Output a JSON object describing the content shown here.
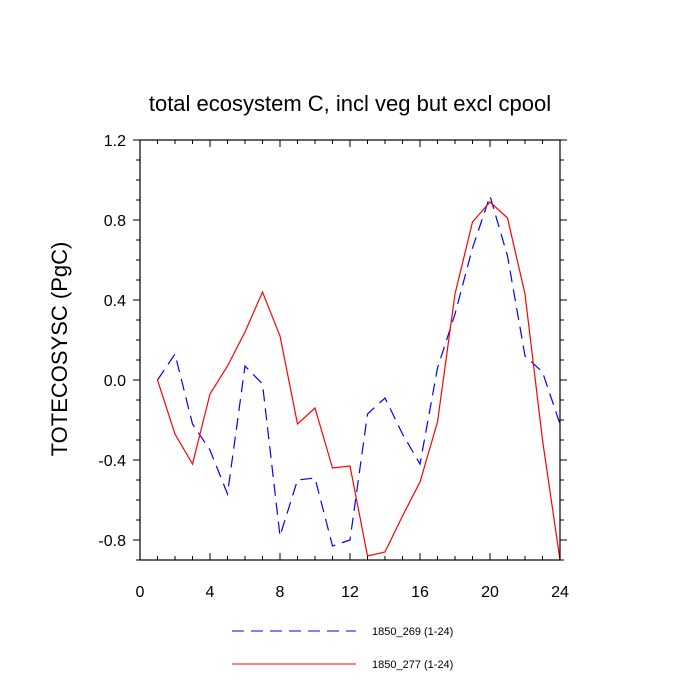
{
  "chart_data": {
    "type": "line",
    "title": "total ecosystem C, incl veg but excl cpool",
    "ylabel": "TOTECOSYSC  (PgC)",
    "xlabel": "",
    "xlim": [
      0,
      24
    ],
    "ylim": [
      -0.9,
      1.2
    ],
    "x_ticks": [
      0,
      4,
      8,
      12,
      16,
      20,
      24
    ],
    "x_tick_labels": [
      "0",
      "4",
      "8",
      "12",
      "16",
      "20",
      "24"
    ],
    "y_ticks": [
      1.2,
      0.8,
      0.4,
      0.0,
      -0.4,
      -0.8
    ],
    "y_tick_labels": [
      "1.2",
      "0.8",
      "0.4",
      "0.0",
      "-0.4",
      "-0.8"
    ],
    "grid": false,
    "legend_position": "bottom",
    "x": [
      1,
      2,
      3,
      4,
      5,
      6,
      7,
      8,
      9,
      10,
      11,
      12,
      13,
      14,
      15,
      16,
      17,
      18,
      19,
      20,
      21,
      22,
      23,
      24
    ],
    "series": [
      {
        "name": "1850_269 (1-24)",
        "color": "#0000ff",
        "style": "dashed",
        "values": [
          0.0,
          0.13,
          -0.22,
          -0.35,
          -0.57,
          0.07,
          -0.02,
          -0.78,
          -0.5,
          -0.49,
          -0.83,
          -0.8,
          -0.17,
          -0.09,
          -0.27,
          -0.42,
          0.06,
          0.33,
          0.66,
          0.92,
          0.62,
          0.12,
          0.04,
          -0.22
        ]
      },
      {
        "name": "1850_277 (1-24)",
        "color": "#ff0000",
        "style": "solid",
        "values": [
          0.0,
          -0.27,
          -0.42,
          -0.07,
          0.07,
          0.24,
          0.44,
          0.22,
          -0.22,
          -0.14,
          -0.44,
          -0.43,
          -0.88,
          -0.86,
          -0.68,
          -0.51,
          -0.21,
          0.43,
          0.79,
          0.89,
          0.81,
          0.43,
          -0.3,
          -0.9
        ]
      }
    ]
  }
}
